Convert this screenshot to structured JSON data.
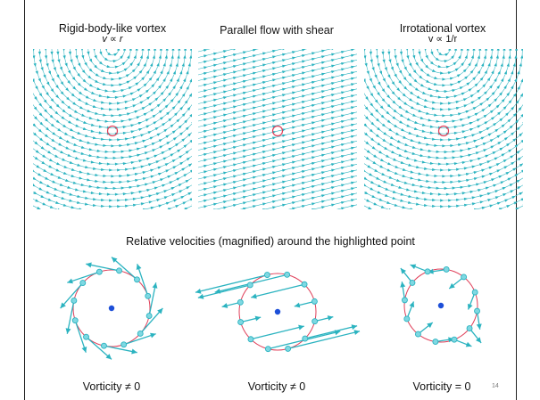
{
  "panels": [
    {
      "title": "Rigid-body-like vortex",
      "subtitle": "v ∝ r"
    },
    {
      "title": "Parallel flow with shear",
      "subtitle": ""
    },
    {
      "title": "Irrotational vortex",
      "subtitle": "v ∝ 1/r"
    }
  ],
  "middle_caption": "Relative velocities (magnified) around the highlighted point",
  "bottom_labels": [
    "Vorticity ≠ 0",
    "Vorticity ≠ 0",
    "Vorticity = 0"
  ],
  "page_number": "14",
  "colors": {
    "streamline": "#2bb3c0",
    "highlight": "#e0405a",
    "center_dot": "#1d4fd8",
    "node_fill": "#7fd8e2"
  }
}
